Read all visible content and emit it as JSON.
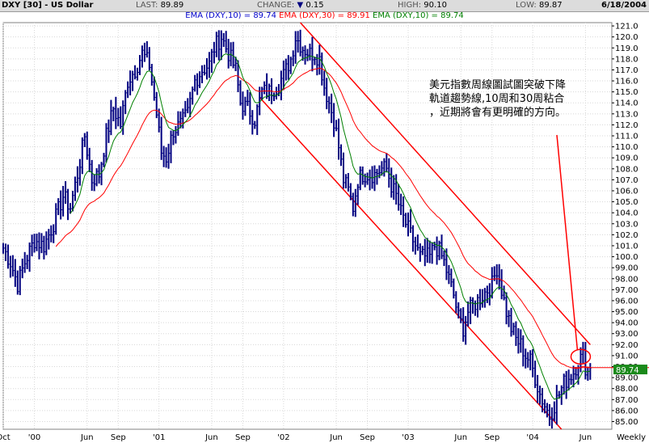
{
  "header": {
    "symbol": "DXY [30] - US Dollar",
    "last_label": "LAST:",
    "last_value": "89.89",
    "change_label": "CHANGE:",
    "change_value": "0.15",
    "high_label": "HIGH:",
    "high_value": "90.10",
    "low_label": "LOW:",
    "low_value": "89.87",
    "date": "6/18/2004"
  },
  "legend": {
    "ema10_blue": "EMA (DXY,10) = 89.74",
    "ema30": "EMA (DXY,30) = 89.91",
    "ema10_green": "EMA (DXY,10) = 89.74"
  },
  "annotation": {
    "line1": "美元指數周線圖試圖突破下降",
    "line2": "軌道趨勢線,10周和30周粘合",
    "line3": "，近期將會有更明確的方向。"
  },
  "price_label": "89.74",
  "colors": {
    "price": "#000080",
    "ema10": "#008000",
    "ema30": "#ff0000",
    "channel": "#ff0000",
    "price_tag": "#1b8a1b"
  },
  "chart_data": {
    "type": "line",
    "title": "DXY [30] - US Dollar",
    "frequency": "Weekly",
    "ylim": [
      84.3,
      121.3
    ],
    "y_ticks": [
      85,
      86,
      87,
      88,
      89,
      90,
      91,
      92,
      93,
      94,
      95,
      96,
      97,
      98,
      99,
      100,
      101,
      102,
      103,
      104,
      105,
      106,
      107,
      108,
      109,
      110,
      111,
      112,
      113,
      114,
      115,
      116,
      117,
      118,
      119,
      120,
      121
    ],
    "y_tick_labels": [
      "85.00",
      "86.00",
      "87.00",
      "88.00",
      "89.00",
      "90.00",
      "91.00",
      "92.00",
      "93.00",
      "94.00",
      "95.00",
      "96.00",
      "97.00",
      "98.00",
      "99.00",
      "100.0",
      "101.0",
      "102.0",
      "103.0",
      "104.0",
      "105.0",
      "106.0",
      "107.0",
      "108.0",
      "109.0",
      "110.0",
      "111.0",
      "112.0",
      "113.0",
      "114.0",
      "115.0",
      "116.0",
      "117.0",
      "118.0",
      "119.0",
      "120.0",
      "121.0"
    ],
    "x_ticks": [
      {
        "label": "Oct",
        "week": 0
      },
      {
        "label": "'00",
        "week": 13
      },
      {
        "label": "Jun",
        "week": 35
      },
      {
        "label": "Sep",
        "week": 48
      },
      {
        "label": "'01",
        "week": 65
      },
      {
        "label": "Jun",
        "week": 87
      },
      {
        "label": "Sep",
        "week": 100
      },
      {
        "label": "'02",
        "week": 117
      },
      {
        "label": "Jun",
        "week": 139
      },
      {
        "label": "Sep",
        "week": 152
      },
      {
        "label": "'03",
        "week": 169
      },
      {
        "label": "Jun",
        "week": 191
      },
      {
        "label": "Sep",
        "week": 204
      },
      {
        "label": "'04",
        "week": 221
      },
      {
        "label": "Jun",
        "week": 243
      },
      {
        "label": "Weekly",
        "week": 254
      }
    ],
    "last_week": 245,
    "price_keypoints": [
      [
        0,
        100.8
      ],
      [
        3,
        99.5
      ],
      [
        6,
        97.5
      ],
      [
        9,
        99.5
      ],
      [
        13,
        101.5
      ],
      [
        17,
        101.0
      ],
      [
        21,
        103.0
      ],
      [
        25,
        105.5
      ],
      [
        28,
        104.5
      ],
      [
        31,
        107.5
      ],
      [
        34,
        111.0
      ],
      [
        37,
        107.0
      ],
      [
        40,
        107.5
      ],
      [
        43,
        111.0
      ],
      [
        46,
        113.5
      ],
      [
        49,
        112.0
      ],
      [
        52,
        116.0
      ],
      [
        55,
        117.0
      ],
      [
        58,
        118.5
      ],
      [
        61,
        117.5
      ],
      [
        64,
        113.0
      ],
      [
        66,
        109.5
      ],
      [
        68,
        109.0
      ],
      [
        71,
        111.5
      ],
      [
        74,
        112.0
      ],
      [
        77,
        113.0
      ],
      [
        80,
        116.0
      ],
      [
        83,
        117.0
      ],
      [
        86,
        117.5
      ],
      [
        88,
        119.0
      ],
      [
        91,
        120.0
      ],
      [
        94,
        118.5
      ],
      [
        97,
        117.0
      ],
      [
        99,
        114.0
      ],
      [
        102,
        113.5
      ],
      [
        105,
        112.5
      ],
      [
        108,
        115.0
      ],
      [
        111,
        115.0
      ],
      [
        114,
        115.5
      ],
      [
        117,
        116.5
      ],
      [
        120,
        118.0
      ],
      [
        122,
        120.0
      ],
      [
        125,
        119.0
      ],
      [
        128,
        118.5
      ],
      [
        130,
        118.5
      ],
      [
        132,
        118.0
      ],
      [
        134,
        115.5
      ],
      [
        136,
        114.0
      ],
      [
        138,
        112.5
      ],
      [
        140,
        110.0
      ],
      [
        142,
        107.0
      ],
      [
        144,
        106.0
      ],
      [
        146,
        104.5
      ],
      [
        148,
        107.0
      ],
      [
        150,
        107.5
      ],
      [
        152,
        107.5
      ],
      [
        155,
        107.5
      ],
      [
        158,
        108.0
      ],
      [
        160,
        108.0
      ],
      [
        162,
        106.5
      ],
      [
        164,
        105.5
      ],
      [
        166,
        104.0
      ],
      [
        168,
        103.0
      ],
      [
        170,
        102.0
      ],
      [
        172,
        101.0
      ],
      [
        174,
        100.0
      ],
      [
        176,
        100.0
      ],
      [
        178,
        100.0
      ],
      [
        180,
        101.0
      ],
      [
        182,
        100.5
      ],
      [
        184,
        99.5
      ],
      [
        186,
        98.0
      ],
      [
        188,
        96.5
      ],
      [
        190,
        94.5
      ],
      [
        192,
        93.5
      ],
      [
        194,
        95.0
      ],
      [
        196,
        95.5
      ],
      [
        198,
        96.0
      ],
      [
        200,
        96.5
      ],
      [
        202,
        97.0
      ],
      [
        204,
        97.5
      ],
      [
        206,
        99.0
      ],
      [
        208,
        97.0
      ],
      [
        210,
        95.0
      ],
      [
        212,
        93.5
      ],
      [
        214,
        92.5
      ],
      [
        216,
        92.0
      ],
      [
        218,
        91.0
      ],
      [
        220,
        90.5
      ],
      [
        222,
        89.0
      ],
      [
        224,
        87.5
      ],
      [
        226,
        86.5
      ],
      [
        228,
        85.5
      ],
      [
        230,
        86.5
      ],
      [
        232,
        87.5
      ],
      [
        234,
        88.5
      ],
      [
        236,
        89.0
      ],
      [
        238,
        89.5
      ],
      [
        240,
        90.5
      ],
      [
        242,
        91.0
      ],
      [
        243,
        90.0
      ],
      [
        244,
        89.5
      ],
      [
        245,
        89.89
      ]
    ],
    "channel_upper": [
      [
        124,
        121.3
      ],
      [
        245,
        92.0
      ]
    ],
    "channel_lower": [
      [
        107,
        114.5
      ],
      [
        233,
        84.3
      ]
    ],
    "ema10_last": 89.74,
    "ema30_last": 89.91,
    "series": [
      {
        "name": "DXY",
        "type": "weekly bars"
      },
      {
        "name": "EMA (DXY,10)",
        "last": 89.74
      },
      {
        "name": "EMA (DXY,30)",
        "last": 89.91
      }
    ]
  }
}
